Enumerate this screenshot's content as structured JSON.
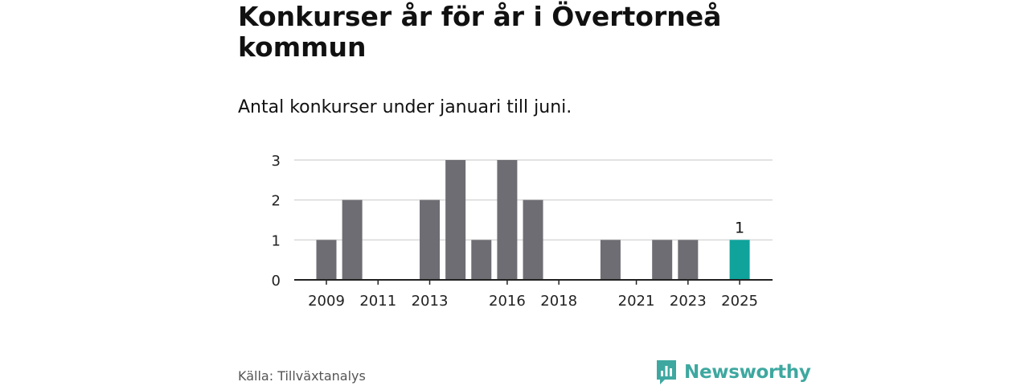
{
  "header": {
    "title": "Konkurser år för år i Övertorneå kommun",
    "subtitle": "Antal konkurser under januari till juni."
  },
  "footer": {
    "source": "Källa: Tillväxtanalys",
    "brand": "Newsworthy",
    "brand_icon": "bar-chart-logo-icon"
  },
  "colors": {
    "bar": "#6e6d73",
    "highlight": "#0fa39c",
    "grid": "#d9d9d9",
    "axis": "#222222",
    "brand": "#3ea8a0"
  },
  "chart_data": {
    "type": "bar",
    "categories": [
      "2009",
      "2010",
      "2011",
      "2012",
      "2013",
      "2014",
      "2015",
      "2016",
      "2017",
      "2018",
      "2019",
      "2020",
      "2021",
      "2022",
      "2023",
      "2024",
      "2025"
    ],
    "values": [
      1,
      2,
      0,
      0,
      2,
      3,
      1,
      3,
      2,
      0,
      0,
      1,
      0,
      1,
      1,
      0,
      1
    ],
    "highlight_category": "2025",
    "data_labels": [
      {
        "category": "2025",
        "text": "1"
      }
    ],
    "x_tick_labels": [
      "2009",
      "2011",
      "2013",
      "2016",
      "2018",
      "2021",
      "2023",
      "2025"
    ],
    "y_ticks": [
      "0",
      "1",
      "2",
      "3"
    ],
    "ylim": [
      0,
      3
    ],
    "grid": true,
    "legend": "none",
    "title": "Konkurser år för år i Övertorneå kommun",
    "subtitle": "Antal konkurser under januari till juni.",
    "xlabel": "",
    "ylabel": ""
  }
}
